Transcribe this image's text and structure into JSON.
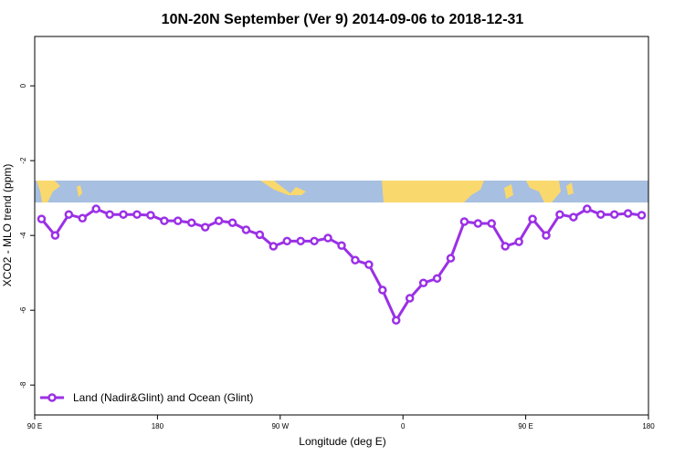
{
  "chart_data": {
    "type": "line",
    "title": "10N-20N September (Ver 9)   2014-09-06 to 2018-12-31",
    "x_label": "Longitude (deg E)",
    "y_label": "XCO2 - MLO trend (ppm)",
    "xlim": [
      90,
      540
    ],
    "xticks": [
      {
        "value": 90,
        "label": "90 E"
      },
      {
        "value": 180,
        "label": "180"
      },
      {
        "value": 270,
        "label": "90 W"
      },
      {
        "value": 360,
        "label": "0"
      },
      {
        "value": 450,
        "label": "90 E"
      },
      {
        "value": 540,
        "label": "180"
      }
    ],
    "ylim": [
      -8.8,
      1.32
    ],
    "yticks": [
      0,
      -2,
      -4,
      -6,
      -8
    ],
    "legend": "bottom-left",
    "x": [
      95,
      105,
      115,
      125,
      135,
      145,
      155,
      165,
      175,
      185,
      195,
      205,
      215,
      225,
      235,
      245,
      255,
      265,
      275,
      285,
      295,
      305,
      315,
      325,
      335,
      345,
      355,
      365,
      375,
      385,
      395,
      405,
      415,
      425,
      435,
      445,
      455,
      465,
      475,
      485,
      495,
      505,
      515,
      525,
      535
    ],
    "series": [
      {
        "name": "Land (Nadir&Glint) and Ocean (Glint)",
        "color": "#9b30e6",
        "values": [
          -3.56,
          -4.0,
          -3.44,
          -3.54,
          -3.29,
          -3.44,
          -3.44,
          -3.44,
          -3.46,
          -3.61,
          -3.61,
          -3.66,
          -3.78,
          -3.61,
          -3.66,
          -3.85,
          -3.98,
          -4.29,
          -4.15,
          -4.15,
          -4.15,
          -4.07,
          -4.27,
          -4.66,
          -4.78,
          -5.46,
          -6.27,
          -5.68,
          -5.27,
          -5.15,
          -4.61,
          -3.63,
          -3.68,
          -3.68,
          -4.29,
          -4.17,
          -3.56,
          -4.0,
          -3.44,
          -3.51,
          -3.29,
          -3.44,
          -3.44,
          -3.41,
          -3.46
        ]
      }
    ]
  }
}
